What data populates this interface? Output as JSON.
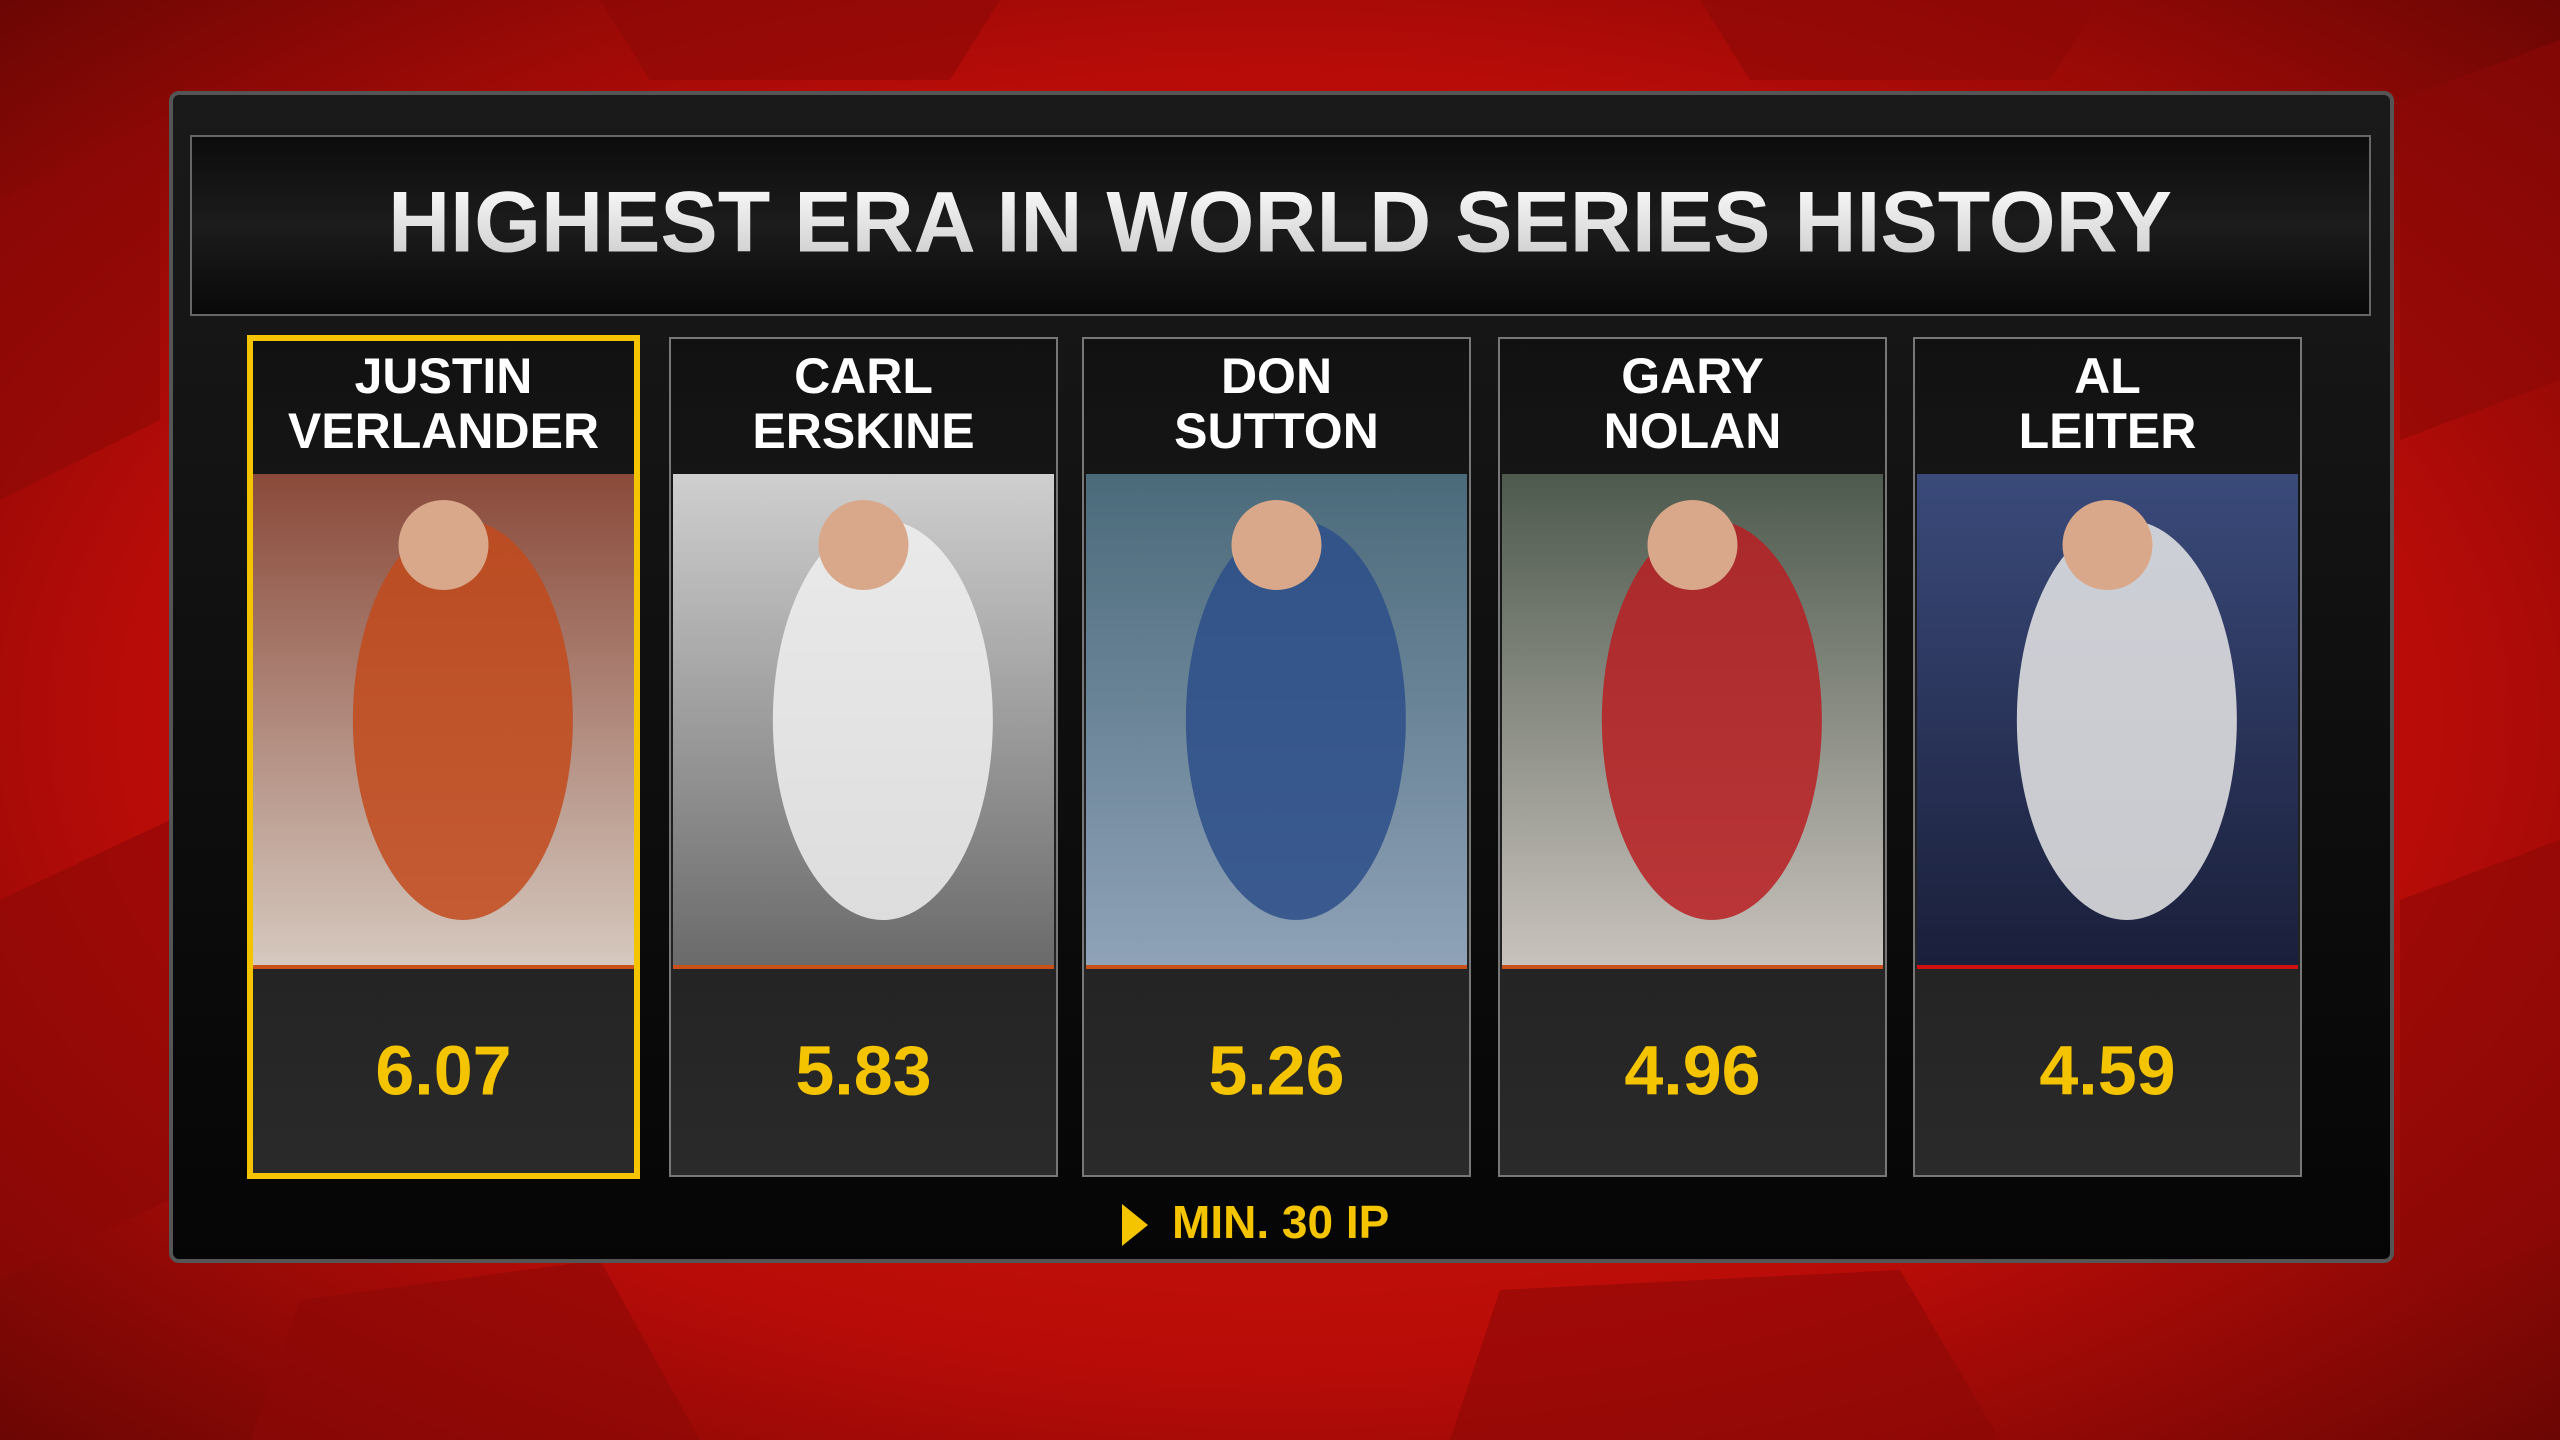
{
  "title": "HIGHEST ERA IN WORLD SERIES HISTORY",
  "players": [
    {
      "first": "JUSTIN",
      "last": "VERLANDER",
      "era": "6.07"
    },
    {
      "first": "CARL",
      "last": "ERSKINE",
      "era": "5.83"
    },
    {
      "first": "DON",
      "last": "SUTTON",
      "era": "5.26"
    },
    {
      "first": "GARY",
      "last": "NOLAN",
      "era": "4.96"
    },
    {
      "first": "AL",
      "last": "LEITER",
      "era": "4.59"
    }
  ],
  "footnote": "MIN. 30 IP"
}
